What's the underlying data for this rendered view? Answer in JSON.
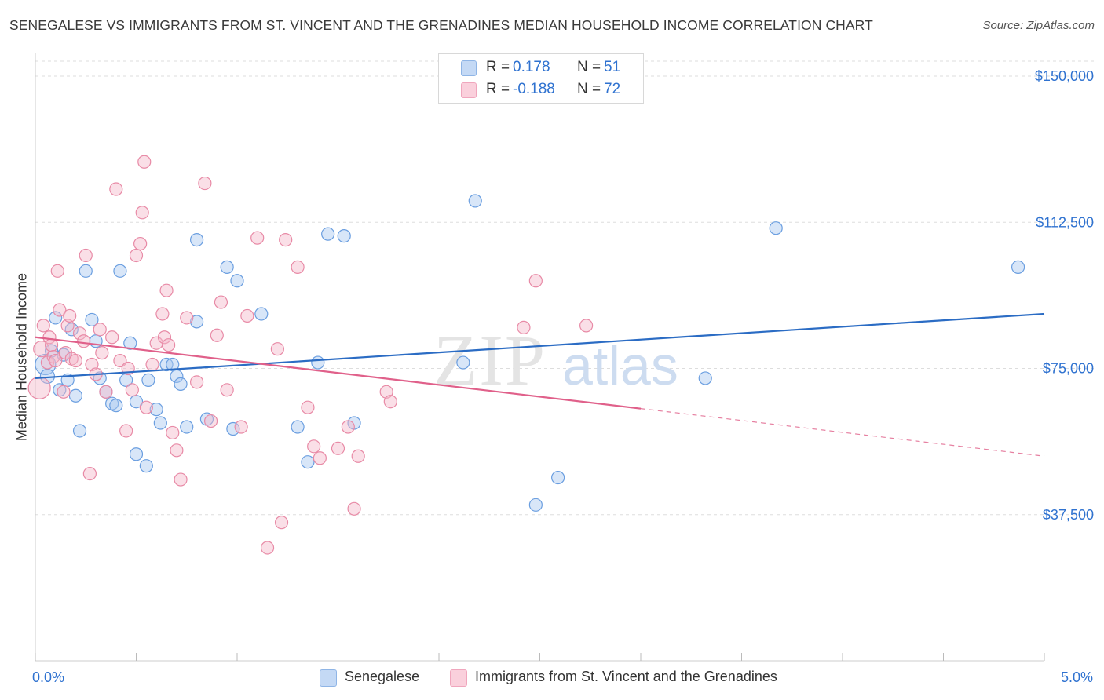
{
  "title": "SENEGALESE VS IMMIGRANTS FROM ST. VINCENT AND THE GRENADINES MEDIAN HOUSEHOLD INCOME CORRELATION CHART",
  "source": "Source: ZipAtlas.com",
  "watermark": {
    "zip": "ZIP",
    "atlas": "atlas"
  },
  "legend_top": {
    "rows": [
      {
        "r_label": "R =",
        "r_value": "0.178",
        "n_label": "N =",
        "n_value": "51",
        "color": "#a9c8f0"
      },
      {
        "r_label": "R =",
        "r_value": "-0.188",
        "n_label": "N =",
        "n_value": "72",
        "color": "#f5b8ca"
      }
    ]
  },
  "legend_bottom": [
    {
      "label": "Senegalese",
      "color": "#a9c8f0"
    },
    {
      "label": "Immigrants from St. Vincent and the Grenadines",
      "color": "#f5b8ca"
    }
  ],
  "chart_data": {
    "type": "scatter",
    "xlabel": "",
    "ylabel": "Median Household Income",
    "xlim": [
      0,
      5
    ],
    "ylim": [
      0,
      150000
    ],
    "x_tick_labels": [
      {
        "value": 0,
        "label": "0.0%"
      },
      {
        "value": 5,
        "label": "5.0%"
      }
    ],
    "y_ticks": [
      {
        "value": 37500,
        "label": "$37,500"
      },
      {
        "value": 75000,
        "label": "$75,000"
      },
      {
        "value": 112500,
        "label": "$112,500"
      },
      {
        "value": 150000,
        "label": "$150,000"
      }
    ],
    "grid": true,
    "legend_position": "top-center",
    "colors": {
      "senegalese_fill": "#a9c8f0",
      "senegalese_stroke": "#6a9ee0",
      "senegalese_line": "#2b6cc4",
      "svg_fill": "#f5b8ca",
      "svg_stroke": "#e88aa6",
      "svg_line": "#e0608a",
      "tick_label": "#2f72d0",
      "grid": "#dddddd"
    },
    "series": [
      {
        "name": "Senegalese",
        "trend": {
          "x0": 0.0,
          "y0": 72500,
          "x1": 5.0,
          "y1": 89000,
          "dashed_from": null
        },
        "points": [
          [
            0.05,
            76000,
            13
          ],
          [
            0.06,
            73000,
            9
          ],
          [
            0.08,
            79500,
            8
          ],
          [
            0.1,
            88000,
            8
          ],
          [
            0.12,
            69500,
            8
          ],
          [
            0.14,
            78500,
            8
          ],
          [
            0.16,
            72000,
            8
          ],
          [
            0.18,
            85000,
            8
          ],
          [
            0.2,
            68000,
            8
          ],
          [
            0.22,
            59000,
            8
          ],
          [
            0.28,
            87500,
            8
          ],
          [
            0.3,
            82000,
            8
          ],
          [
            0.32,
            72500,
            8
          ],
          [
            0.35,
            69000,
            8
          ],
          [
            0.38,
            66000,
            8
          ],
          [
            0.4,
            65500,
            8
          ],
          [
            0.42,
            100000,
            8
          ],
          [
            0.45,
            72000,
            8
          ],
          [
            0.47,
            81500,
            8
          ],
          [
            0.5,
            66500,
            8
          ],
          [
            0.5,
            53000,
            8
          ],
          [
            0.55,
            50000,
            8
          ],
          [
            0.56,
            72000,
            8
          ],
          [
            0.6,
            64500,
            8
          ],
          [
            0.62,
            61000,
            8
          ],
          [
            0.65,
            76000,
            8
          ],
          [
            0.68,
            76000,
            8
          ],
          [
            0.7,
            73000,
            8
          ],
          [
            0.72,
            71000,
            8
          ],
          [
            0.75,
            60000,
            8
          ],
          [
            0.8,
            87000,
            8
          ],
          [
            0.8,
            108000,
            8
          ],
          [
            0.85,
            62000,
            8
          ],
          [
            0.95,
            101000,
            8
          ],
          [
            0.98,
            59500,
            8
          ],
          [
            1.12,
            89000,
            8
          ],
          [
            1.0,
            97500,
            8
          ],
          [
            1.3,
            60000,
            8
          ],
          [
            1.35,
            51000,
            8
          ],
          [
            1.4,
            76500,
            8
          ],
          [
            1.45,
            109500,
            8
          ],
          [
            1.53,
            109000,
            8
          ],
          [
            1.58,
            61000,
            8
          ],
          [
            2.12,
            76500,
            8
          ],
          [
            2.18,
            118000,
            8
          ],
          [
            2.48,
            40000,
            8
          ],
          [
            2.59,
            47000,
            8
          ],
          [
            3.32,
            72500,
            8
          ],
          [
            3.67,
            111000,
            8
          ],
          [
            4.87,
            101000,
            8
          ],
          [
            0.25,
            100000,
            8
          ]
        ]
      },
      {
        "name": "Immigrants from St. Vincent and the Grenadines",
        "trend": {
          "x0": 0.0,
          "y0": 83000,
          "x1": 5.0,
          "y1": 52500,
          "dashed_from": 3.0
        },
        "points": [
          [
            0.02,
            70000,
            14
          ],
          [
            0.03,
            80000,
            10
          ],
          [
            0.04,
            86000,
            8
          ],
          [
            0.06,
            76500,
            8
          ],
          [
            0.07,
            83000,
            8
          ],
          [
            0.08,
            81000,
            8
          ],
          [
            0.09,
            78000,
            8
          ],
          [
            0.1,
            77000,
            8
          ],
          [
            0.11,
            100000,
            8
          ],
          [
            0.12,
            90000,
            8
          ],
          [
            0.14,
            69000,
            8
          ],
          [
            0.15,
            79000,
            8
          ],
          [
            0.16,
            86000,
            8
          ],
          [
            0.17,
            88500,
            8
          ],
          [
            0.18,
            77500,
            8
          ],
          [
            0.2,
            77000,
            8
          ],
          [
            0.22,
            84000,
            8
          ],
          [
            0.24,
            82000,
            8
          ],
          [
            0.25,
            104000,
            8
          ],
          [
            0.27,
            48000,
            8
          ],
          [
            0.28,
            76000,
            8
          ],
          [
            0.3,
            73500,
            8
          ],
          [
            0.32,
            85000,
            8
          ],
          [
            0.33,
            79000,
            8
          ],
          [
            0.35,
            69000,
            8
          ],
          [
            0.38,
            83000,
            8
          ],
          [
            0.4,
            121000,
            8
          ],
          [
            0.42,
            77000,
            8
          ],
          [
            0.45,
            59000,
            8
          ],
          [
            0.46,
            75000,
            8
          ],
          [
            0.48,
            69500,
            8
          ],
          [
            0.5,
            104000,
            8
          ],
          [
            0.52,
            107000,
            8
          ],
          [
            0.53,
            115000,
            8
          ],
          [
            0.54,
            128000,
            8
          ],
          [
            0.55,
            65000,
            8
          ],
          [
            0.58,
            76000,
            8
          ],
          [
            0.6,
            81500,
            8
          ],
          [
            0.63,
            89000,
            8
          ],
          [
            0.64,
            83000,
            8
          ],
          [
            0.65,
            95000,
            8
          ],
          [
            0.66,
            81000,
            8
          ],
          [
            0.68,
            58500,
            8
          ],
          [
            0.7,
            54000,
            8
          ],
          [
            0.72,
            46500,
            8
          ],
          [
            0.75,
            88000,
            8
          ],
          [
            0.8,
            71500,
            8
          ],
          [
            0.84,
            122500,
            8
          ],
          [
            0.87,
            61500,
            8
          ],
          [
            0.9,
            83500,
            8
          ],
          [
            0.92,
            92000,
            8
          ],
          [
            0.95,
            69500,
            8
          ],
          [
            1.02,
            60000,
            8
          ],
          [
            1.05,
            88500,
            8
          ],
          [
            1.1,
            108500,
            8
          ],
          [
            1.15,
            29000,
            8
          ],
          [
            1.2,
            80000,
            8
          ],
          [
            1.22,
            35500,
            8
          ],
          [
            1.24,
            108000,
            8
          ],
          [
            1.3,
            101000,
            8
          ],
          [
            1.35,
            65000,
            8
          ],
          [
            1.38,
            55000,
            8
          ],
          [
            1.41,
            52000,
            8
          ],
          [
            1.5,
            54500,
            8
          ],
          [
            1.55,
            60000,
            8
          ],
          [
            1.58,
            39000,
            8
          ],
          [
            1.6,
            52500,
            8
          ],
          [
            1.74,
            69000,
            8
          ],
          [
            1.76,
            66500,
            8
          ],
          [
            2.42,
            85500,
            8
          ],
          [
            2.48,
            97500,
            8
          ],
          [
            2.73,
            86000,
            8
          ]
        ]
      }
    ]
  }
}
